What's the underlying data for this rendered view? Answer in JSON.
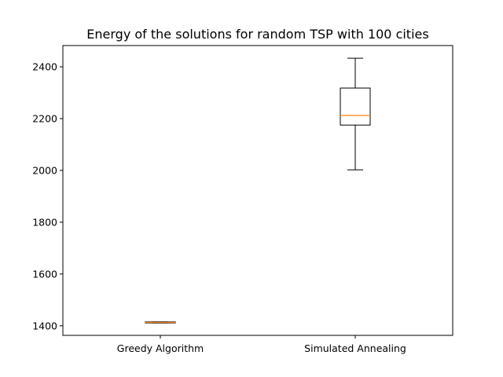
{
  "chart_data": {
    "type": "box",
    "title": "Energy of the solutions for random TSP with 100 cities",
    "xlabel": "",
    "ylabel": "",
    "ylim": [
      1363,
      2482
    ],
    "y_ticks": [
      1400,
      1600,
      1800,
      2000,
      2200,
      2400
    ],
    "grid": false,
    "categories": [
      "Greedy Algorithm",
      "Simulated Annealing"
    ],
    "boxes": [
      {
        "category": "Greedy Algorithm",
        "whisker_low": 1411,
        "q1": 1411,
        "median": 1413,
        "q3": 1415,
        "whisker_high": 1415
      },
      {
        "category": "Simulated Annealing",
        "whisker_low": 2002,
        "q1": 2175,
        "median": 2212,
        "q3": 2318,
        "whisker_high": 2433
      }
    ],
    "colors": {
      "box": "#000000",
      "median": "#ff7f0e",
      "axes": "#000000"
    }
  }
}
